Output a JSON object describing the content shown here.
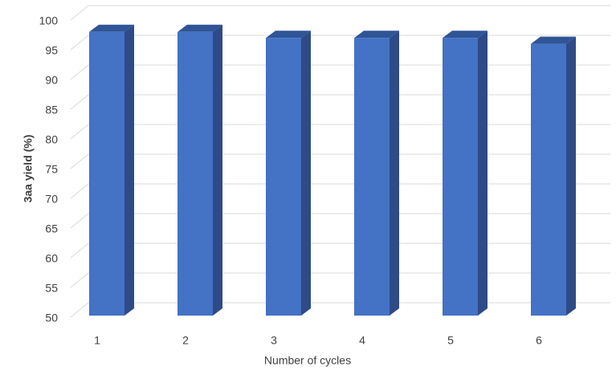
{
  "chart_data": {
    "type": "bar3d",
    "x_label": "Number of cycles",
    "y_label": "3aa yield (%)",
    "categories": [
      "1",
      "2",
      "3",
      "4",
      "5",
      "6"
    ],
    "values": [
      98,
      98,
      97,
      97,
      97,
      96
    ],
    "color": "#4472c4",
    "ylim": [
      50,
      100
    ],
    "yticks": [
      50,
      55,
      60,
      65,
      70,
      75,
      80,
      85,
      90,
      95,
      100
    ],
    "grid": true
  }
}
